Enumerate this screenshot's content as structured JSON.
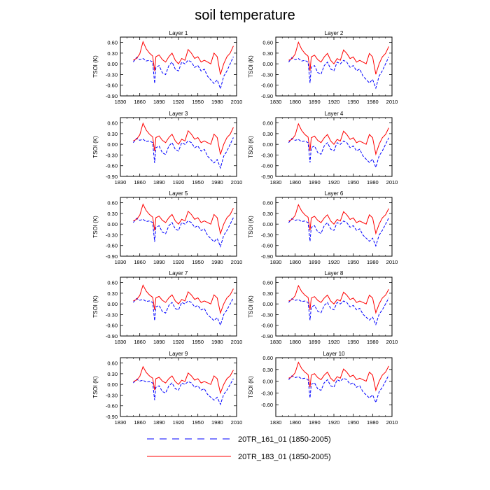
{
  "figure_title": "soil temperature",
  "legend": [
    {
      "label": "20TR_161_01 (1850-2005)",
      "color": "#0000ff",
      "style": "dashed"
    },
    {
      "label": "20TR_183_01 (1850-2005)",
      "color": "#ff0000",
      "style": "solid"
    }
  ],
  "colors": {
    "series_a": "#0000ff",
    "series_b": "#ff0000",
    "axis": "#000000"
  },
  "chart_data": [
    {
      "type": "line",
      "title": "Layer 1",
      "ylabel": "TSOI  (K)",
      "xlim": [
        1830,
        2010
      ],
      "ylim": [
        -0.9,
        0.75
      ],
      "xticks": [
        "1830",
        "1860",
        "1890",
        "1920",
        "1950",
        "1980",
        "2010"
      ],
      "yticks": [
        "0.60",
        "0.30",
        "0.00",
        "-0.30",
        "-0.60",
        "-0.90"
      ]
    },
    {
      "type": "line",
      "title": "Layer 2",
      "ylabel": "TSOI  (K)",
      "xlim": [
        1830,
        2010
      ],
      "ylim": [
        -0.9,
        0.75
      ],
      "xticks": [
        "1830",
        "1860",
        "1890",
        "1920",
        "1950",
        "1980",
        "2010"
      ],
      "yticks": [
        "0.60",
        "0.30",
        "0.00",
        "-0.30",
        "-0.60",
        "-0.90"
      ]
    },
    {
      "type": "line",
      "title": "Layer 3",
      "ylabel": "TSOI  (K)",
      "xlim": [
        1830,
        2010
      ],
      "ylim": [
        -0.9,
        0.75
      ],
      "xticks": [
        "1830",
        "1860",
        "1890",
        "1920",
        "1950",
        "1980",
        "2010"
      ],
      "yticks": [
        "0.60",
        "0.30",
        "0.00",
        "-0.30",
        "-0.60",
        "-0.90"
      ]
    },
    {
      "type": "line",
      "title": "Layer 4",
      "ylabel": "TSOI  (K)",
      "xlim": [
        1830,
        2010
      ],
      "ylim": [
        -0.9,
        0.75
      ],
      "xticks": [
        "1830",
        "1860",
        "1890",
        "1920",
        "1950",
        "1980",
        "2010"
      ],
      "yticks": [
        "0.60",
        "0.30",
        "0.00",
        "-0.30",
        "-0.60",
        "-0.90"
      ]
    },
    {
      "type": "line",
      "title": "Layer 5",
      "ylabel": "TSOI  (K)",
      "xlim": [
        1830,
        2010
      ],
      "ylim": [
        -0.9,
        0.75
      ],
      "xticks": [
        "1830",
        "1860",
        "1890",
        "1920",
        "1950",
        "1980",
        "2010"
      ],
      "yticks": [
        "0.60",
        "0.30",
        "0.00",
        "-0.30",
        "-0.60",
        "-0.90"
      ]
    },
    {
      "type": "line",
      "title": "Layer 6",
      "ylabel": "TSOI  (K)",
      "xlim": [
        1830,
        2010
      ],
      "ylim": [
        -0.9,
        0.75
      ],
      "xticks": [
        "1830",
        "1860",
        "1890",
        "1920",
        "1950",
        "1980",
        "2010"
      ],
      "yticks": [
        "0.60",
        "0.30",
        "0.00",
        "-0.30",
        "-0.60",
        "-0.90"
      ]
    },
    {
      "type": "line",
      "title": "Layer 7",
      "ylabel": "TSOI  (K)",
      "xlim": [
        1830,
        2010
      ],
      "ylim": [
        -0.9,
        0.75
      ],
      "xticks": [
        "1830",
        "1860",
        "1890",
        "1920",
        "1950",
        "1980",
        "2010"
      ],
      "yticks": [
        "0.60",
        "0.30",
        "0.00",
        "-0.30",
        "-0.60",
        "-0.90"
      ]
    },
    {
      "type": "line",
      "title": "Layer 8",
      "ylabel": "TSOI  (K)",
      "xlim": [
        1830,
        2010
      ],
      "ylim": [
        -0.9,
        0.75
      ],
      "xticks": [
        "1830",
        "1860",
        "1890",
        "1920",
        "1950",
        "1980",
        "2010"
      ],
      "yticks": [
        "0.60",
        "0.30",
        "0.00",
        "-0.30",
        "-0.60",
        "-0.90"
      ]
    },
    {
      "type": "line",
      "title": "Layer 9",
      "ylabel": "TSOI  (K)",
      "xlim": [
        1830,
        2010
      ],
      "ylim": [
        -0.9,
        0.75
      ],
      "xticks": [
        "1830",
        "1860",
        "1890",
        "1920",
        "1950",
        "1980",
        "2010"
      ],
      "yticks": [
        "0.60",
        "0.30",
        "0.00",
        "-0.30",
        "-0.60",
        "-0.90"
      ]
    },
    {
      "type": "line",
      "title": "Layer 10",
      "ylabel": "TSOI  (K)",
      "xlim": [
        1830,
        2010
      ],
      "ylim": [
        -0.9,
        0.6
      ],
      "xticks": [
        "1830",
        "1860",
        "1890",
        "1920",
        "1950",
        "1980",
        "2010"
      ],
      "yticks": [
        "0.60",
        "0.30",
        "0.00",
        "-0.30",
        "-0.60"
      ]
    }
  ],
  "series_values": {
    "years": [
      1850,
      1855,
      1860,
      1865,
      1870,
      1875,
      1880,
      1883,
      1885,
      1890,
      1895,
      1900,
      1905,
      1910,
      1915,
      1920,
      1925,
      1930,
      1935,
      1940,
      1945,
      1950,
      1955,
      1960,
      1965,
      1970,
      1975,
      1980,
      1985,
      1990,
      1995,
      2000,
      2005
    ],
    "a_20TR_161_01": [
      0.05,
      0.18,
      0.12,
      0.15,
      0.08,
      0.1,
      0.05,
      -0.55,
      -0.1,
      -0.05,
      -0.25,
      -0.3,
      -0.05,
      0.05,
      -0.15,
      -0.2,
      0.05,
      0.0,
      0.1,
      0.05,
      -0.1,
      -0.05,
      -0.2,
      -0.15,
      -0.35,
      -0.45,
      -0.55,
      -0.45,
      -0.7,
      -0.35,
      -0.2,
      0.0,
      0.2
    ],
    "b_20TR_183_01": [
      0.1,
      0.15,
      0.28,
      0.62,
      0.42,
      0.3,
      0.22,
      -0.2,
      0.2,
      0.25,
      0.12,
      0.05,
      0.2,
      0.3,
      0.1,
      0.0,
      0.15,
      0.1,
      0.4,
      0.3,
      0.15,
      0.2,
      0.05,
      0.1,
      0.05,
      0.0,
      0.3,
      0.2,
      -0.3,
      0.0,
      0.2,
      0.3,
      0.5
    ]
  }
}
